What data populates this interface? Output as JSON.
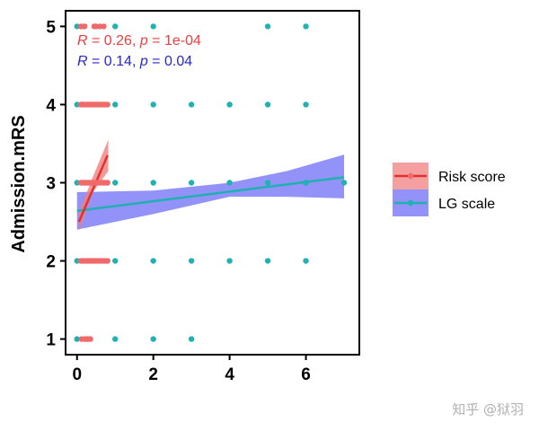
{
  "chart_data": {
    "type": "scatter",
    "ylabel": "Admission.mRS",
    "xlabel": "",
    "xlim": [
      -0.3,
      7.4
    ],
    "ylim": [
      0.8,
      5.2
    ],
    "x_ticks": [
      {
        "value": 0,
        "label": "0"
      },
      {
        "value": 2,
        "label": "2"
      },
      {
        "value": 4,
        "label": "4"
      },
      {
        "value": 6,
        "label": "6"
      }
    ],
    "y_ticks": [
      {
        "value": 1,
        "label": "1"
      },
      {
        "value": 2,
        "label": "2"
      },
      {
        "value": 3,
        "label": "3"
      },
      {
        "value": 4,
        "label": "4"
      },
      {
        "value": 5,
        "label": "5"
      }
    ],
    "grid": false,
    "legend_position": "right",
    "series": [
      {
        "name": "Risk score",
        "color": "#f06a6a",
        "ribbon_color": "#f08080",
        "points": [
          [
            0.1,
            5
          ],
          [
            0.17,
            5
          ],
          [
            0.2,
            5
          ],
          [
            0.45,
            5
          ],
          [
            0.5,
            5
          ],
          [
            0.6,
            5
          ],
          [
            0.7,
            5
          ],
          [
            0.1,
            4
          ],
          [
            0.13,
            4
          ],
          [
            0.16,
            4
          ],
          [
            0.2,
            4
          ],
          [
            0.25,
            4
          ],
          [
            0.3,
            4
          ],
          [
            0.35,
            4
          ],
          [
            0.4,
            4
          ],
          [
            0.45,
            4
          ],
          [
            0.5,
            4
          ],
          [
            0.55,
            4
          ],
          [
            0.6,
            4
          ],
          [
            0.65,
            4
          ],
          [
            0.7,
            4
          ],
          [
            0.75,
            4
          ],
          [
            0.8,
            4
          ],
          [
            0.1,
            3
          ],
          [
            0.15,
            3
          ],
          [
            0.2,
            3
          ],
          [
            0.25,
            3
          ],
          [
            0.3,
            3
          ],
          [
            0.35,
            3
          ],
          [
            0.4,
            3
          ],
          [
            0.45,
            3
          ],
          [
            0.5,
            3
          ],
          [
            0.55,
            3
          ],
          [
            0.6,
            3
          ],
          [
            0.65,
            3
          ],
          [
            0.7,
            3
          ],
          [
            0.75,
            3
          ],
          [
            0.8,
            3
          ],
          [
            0.1,
            2
          ],
          [
            0.15,
            2
          ],
          [
            0.2,
            2
          ],
          [
            0.25,
            2
          ],
          [
            0.3,
            2
          ],
          [
            0.35,
            2
          ],
          [
            0.4,
            2
          ],
          [
            0.45,
            2
          ],
          [
            0.5,
            2
          ],
          [
            0.55,
            2
          ],
          [
            0.6,
            2
          ],
          [
            0.65,
            2
          ],
          [
            0.7,
            2
          ],
          [
            0.75,
            2
          ],
          [
            0.8,
            2
          ],
          [
            0.12,
            1
          ],
          [
            0.2,
            1
          ],
          [
            0.25,
            1
          ],
          [
            0.3,
            1
          ],
          [
            0.35,
            1
          ]
        ],
        "fit": [
          [
            0.05,
            2.5
          ],
          [
            0.8,
            3.35
          ]
        ],
        "ribbon_upper": [
          [
            0.05,
            2.62
          ],
          [
            0.42,
            3.08
          ],
          [
            0.82,
            3.55
          ]
        ],
        "ribbon_lower": [
          [
            0.05,
            2.38
          ],
          [
            0.42,
            2.88
          ],
          [
            0.82,
            3.15
          ]
        ]
      },
      {
        "name": "LG scale",
        "color": "#20b2b2",
        "ribbon_color": "#6e6ef5",
        "points": [
          [
            0,
            5
          ],
          [
            1,
            5
          ],
          [
            2,
            5
          ],
          [
            5,
            5
          ],
          [
            6,
            5
          ],
          [
            0,
            4
          ],
          [
            1,
            4
          ],
          [
            2,
            4
          ],
          [
            3,
            4
          ],
          [
            4,
            4
          ],
          [
            5,
            4
          ],
          [
            6,
            4
          ],
          [
            0,
            3
          ],
          [
            1,
            3
          ],
          [
            2,
            3
          ],
          [
            3,
            3
          ],
          [
            4,
            3
          ],
          [
            5,
            3
          ],
          [
            6,
            3
          ],
          [
            7,
            3
          ],
          [
            0,
            2
          ],
          [
            1,
            2
          ],
          [
            2,
            2
          ],
          [
            3,
            2
          ],
          [
            4,
            2
          ],
          [
            5,
            2
          ],
          [
            6,
            2
          ],
          [
            0,
            1
          ],
          [
            1,
            1
          ],
          [
            2,
            1
          ],
          [
            3,
            1
          ]
        ],
        "fit": [
          [
            0,
            2.64
          ],
          [
            7,
            3.07
          ]
        ],
        "ribbon_upper": [
          [
            0,
            2.88
          ],
          [
            2,
            2.9
          ],
          [
            4,
            3.0
          ],
          [
            5.5,
            3.15
          ],
          [
            7,
            3.36
          ]
        ],
        "ribbon_lower": [
          [
            0,
            2.4
          ],
          [
            2,
            2.6
          ],
          [
            4,
            2.82
          ],
          [
            5.5,
            2.82
          ],
          [
            7,
            2.8
          ]
        ]
      }
    ],
    "annotations": [
      {
        "r_symbol": "R",
        "r_value": " = 0.26, ",
        "p_symbol": "p",
        "p_value": " = 1e-04",
        "color": "#e84040"
      },
      {
        "r_symbol": "R",
        "r_value": " = 0.14, ",
        "p_symbol": "p",
        "p_value": " = 0.04",
        "color": "#2828c8"
      }
    ]
  },
  "watermark": "知乎 @狱羽"
}
